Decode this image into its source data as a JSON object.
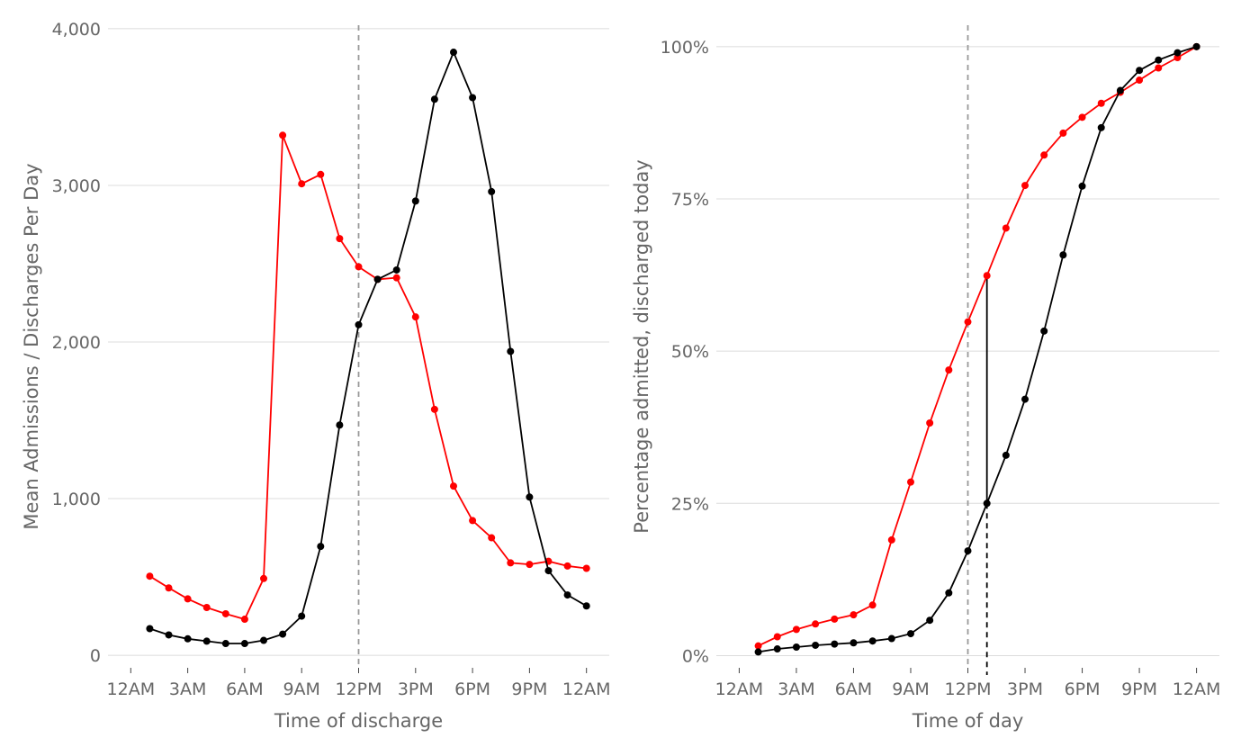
{
  "chart_data": [
    {
      "type": "line",
      "xlabel": "Time of discharge",
      "ylabel": "Mean Admissions / Discharges Per Day",
      "x_ticks": [
        0,
        3,
        6,
        9,
        12,
        15,
        18,
        21,
        24
      ],
      "x_tick_labels": [
        "12AM",
        "3AM",
        "6AM",
        "9AM",
        "12PM",
        "3PM",
        "6PM",
        "9PM",
        "12AM"
      ],
      "xlim": [
        -1.2,
        25.2
      ],
      "y_ticks": [
        0,
        1000,
        2000,
        3000,
        4000
      ],
      "y_tick_labels": [
        "0",
        "1,000",
        "2,000",
        "3,000",
        "4,000"
      ],
      "ylim": [
        -80,
        4080
      ],
      "grid": true,
      "vline_x": 12,
      "series": [
        {
          "color": "#ff0000",
          "x": [
            1,
            2,
            3,
            4,
            5,
            6,
            7,
            8,
            9,
            10,
            11,
            12,
            13,
            14,
            15,
            16,
            17,
            18,
            19,
            20,
            21,
            22,
            23,
            24
          ],
          "values": [
            505,
            430,
            360,
            305,
            265,
            230,
            490,
            3320,
            3010,
            3070,
            2660,
            2480,
            2400,
            2410,
            2160,
            1570,
            1080,
            860,
            750,
            590,
            580,
            600,
            570,
            555
          ]
        },
        {
          "color": "#000000",
          "x": [
            1,
            2,
            3,
            4,
            5,
            6,
            7,
            8,
            9,
            10,
            11,
            12,
            13,
            14,
            15,
            16,
            17,
            18,
            19,
            20,
            21,
            22,
            23,
            24
          ],
          "values": [
            170,
            130,
            105,
            90,
            75,
            75,
            95,
            135,
            250,
            695,
            1470,
            2110,
            2400,
            2460,
            2900,
            3550,
            3850,
            3560,
            2960,
            1940,
            1010,
            540,
            385,
            315
          ]
        }
      ]
    },
    {
      "type": "line",
      "xlabel": "Time of day",
      "ylabel": "Percentage admitted, discharged today",
      "x_ticks": [
        0,
        3,
        6,
        9,
        12,
        15,
        18,
        21,
        24
      ],
      "x_tick_labels": [
        "12AM",
        "3AM",
        "6AM",
        "9AM",
        "12PM",
        "3PM",
        "6PM",
        "9PM",
        "12AM"
      ],
      "xlim": [
        -1.2,
        25.2
      ],
      "y_ticks": [
        0,
        25,
        50,
        75,
        100
      ],
      "y_tick_labels": [
        "0%",
        "25%",
        "50%",
        "75%",
        "100%"
      ],
      "ylim": [
        -2,
        105
      ],
      "grid": true,
      "vline_x": 12,
      "gap_x": 13,
      "series": [
        {
          "color": "#ff0000",
          "x": [
            1,
            2,
            3,
            4,
            5,
            6,
            7,
            8,
            9,
            10,
            11,
            12,
            13,
            14,
            15,
            16,
            17,
            18,
            19,
            20,
            21,
            22,
            23,
            24
          ],
          "values": [
            1.6,
            3.1,
            4.3,
            5.2,
            6.0,
            6.7,
            8.3,
            19.0,
            28.5,
            38.2,
            46.9,
            54.8,
            62.4,
            70.2,
            77.2,
            82.2,
            85.8,
            88.4,
            90.7,
            92.5,
            94.5,
            96.5,
            98.2,
            100
          ]
        },
        {
          "color": "#000000",
          "x": [
            1,
            2,
            3,
            4,
            5,
            6,
            7,
            8,
            9,
            10,
            11,
            12,
            13,
            14,
            15,
            16,
            17,
            18,
            19,
            20,
            21,
            22,
            23,
            24
          ],
          "values": [
            0.6,
            1.1,
            1.4,
            1.7,
            1.9,
            2.1,
            2.4,
            2.8,
            3.6,
            5.8,
            10.3,
            17.2,
            25.0,
            32.9,
            42.1,
            53.3,
            65.8,
            77.1,
            86.7,
            92.8,
            96.1,
            97.8,
            99.0,
            100
          ]
        }
      ]
    }
  ]
}
